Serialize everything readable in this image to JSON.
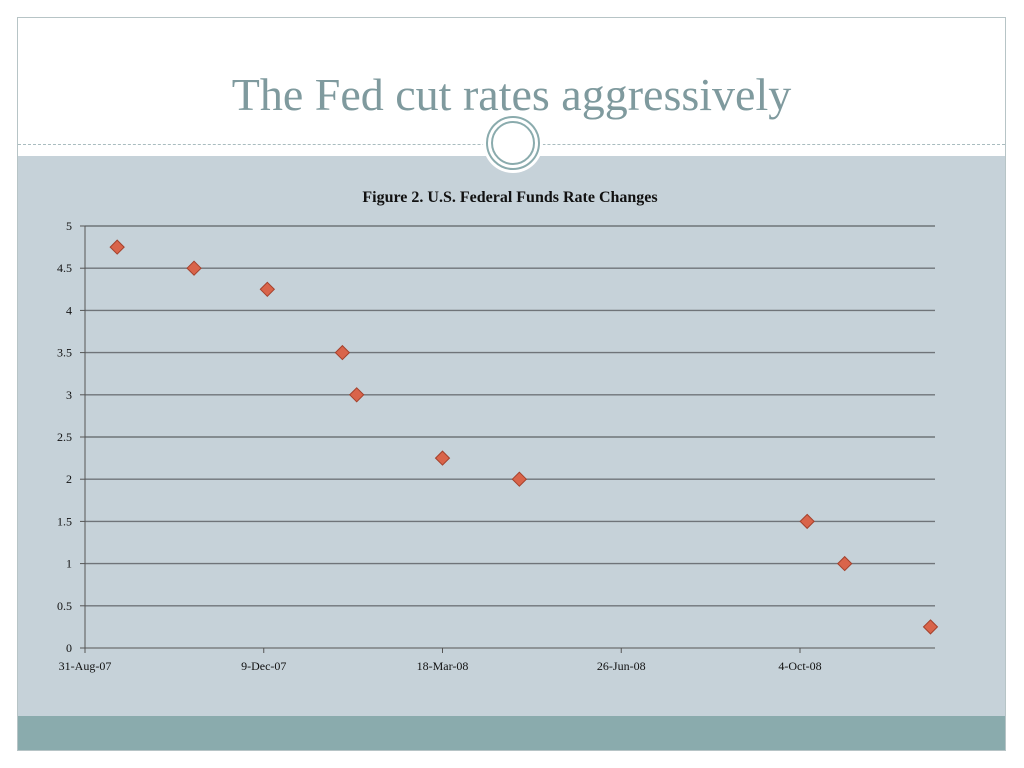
{
  "slide": {
    "title": "The Fed cut rates aggressively"
  },
  "colors": {
    "title": "#7f9a9e",
    "panel": "#c6d2d9",
    "footer": "#8aabad",
    "marker": "#d9644a",
    "marker_stroke": "#a3412c",
    "gridline": "#6f7479"
  },
  "chart_data": {
    "type": "scatter",
    "title": "Figure 2. U.S. Federal Funds Rate Changes",
    "xlabel": "",
    "ylabel": "",
    "x_type": "date",
    "xlim": [
      "2007-08-31",
      "2008-12-31"
    ],
    "ylim": [
      0,
      5
    ],
    "y_ticks": [
      0,
      0.5,
      1,
      1.5,
      2,
      2.5,
      3,
      3.5,
      4,
      4.5,
      5
    ],
    "y_tick_labels": [
      "0",
      "0.5",
      "1",
      "1.5",
      "2",
      "2.5",
      "3",
      "3.5",
      "4",
      "4.5",
      "5"
    ],
    "x_ticks": [
      "2007-08-31",
      "2007-12-09",
      "2008-03-18",
      "2008-06-26",
      "2008-10-04"
    ],
    "x_tick_labels": [
      "31-Aug-07",
      "9-Dec-07",
      "18-Mar-08",
      "26-Jun-08",
      "4-Oct-08"
    ],
    "grid": true,
    "points": [
      {
        "x": "2007-09-18",
        "y": 4.75
      },
      {
        "x": "2007-10-31",
        "y": 4.5
      },
      {
        "x": "2007-12-11",
        "y": 4.25
      },
      {
        "x": "2008-01-22",
        "y": 3.5
      },
      {
        "x": "2008-01-30",
        "y": 3.0
      },
      {
        "x": "2008-03-18",
        "y": 2.25
      },
      {
        "x": "2008-04-30",
        "y": 2.0
      },
      {
        "x": "2008-10-08",
        "y": 1.5
      },
      {
        "x": "2008-10-29",
        "y": 1.0
      },
      {
        "x": "2008-12-16",
        "y": 0.25
      }
    ]
  }
}
